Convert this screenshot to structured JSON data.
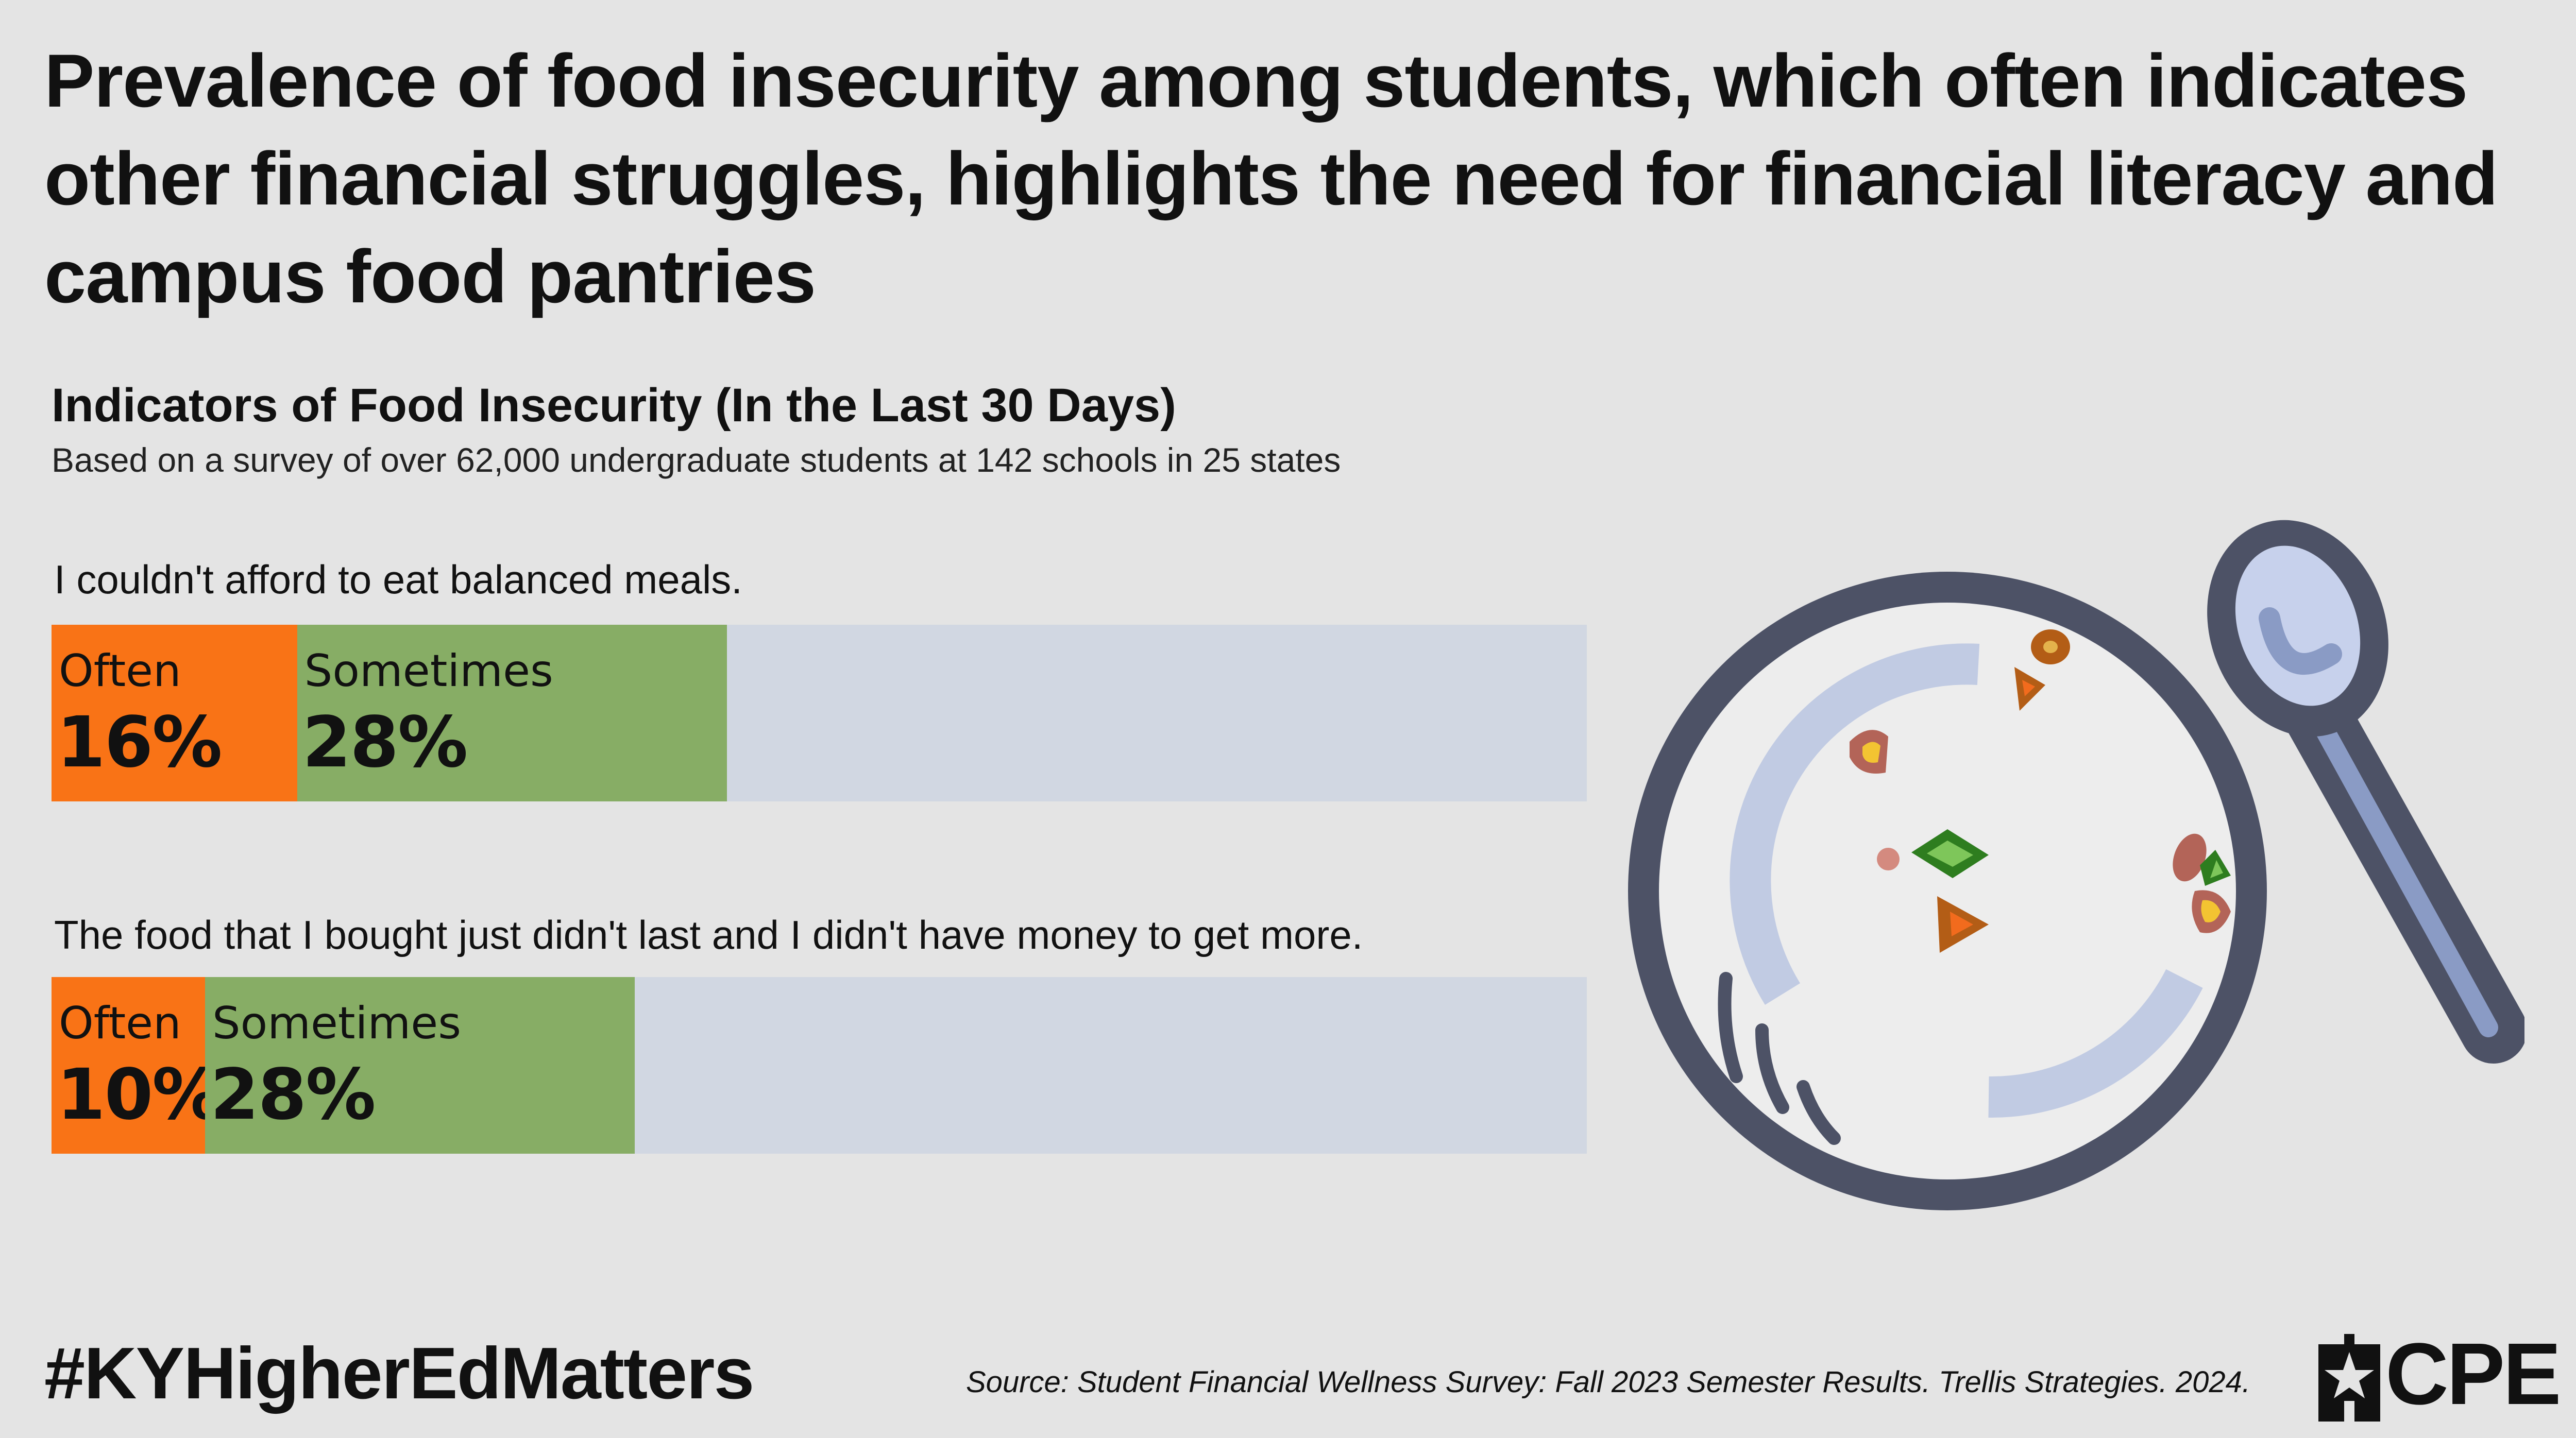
{
  "headline": "Prevalence of food insecurity among students, which often indicates other financial struggles, highlights the need for financial literacy and campus food pantries",
  "chart_data": {
    "type": "bar",
    "orientation": "horizontal-stacked",
    "title": "Indicators of Food Insecurity (In the Last 30 Days)",
    "subtitle": "Based on a survey of over 62,000 undergraduate students at 142 schools in 25 states",
    "xlim": [
      0,
      100
    ],
    "categories": [
      "I couldn't afford to eat balanced meals.",
      "The food that I bought just didn't last and I didn't have money to get more."
    ],
    "series": [
      {
        "name": "Often",
        "color": "#f97316",
        "values": [
          16,
          10
        ],
        "labels": [
          "16%",
          "10%"
        ]
      },
      {
        "name": "Sometimes",
        "color": "#87ad65",
        "values": [
          28,
          28
        ],
        "labels": [
          "28%",
          "28%"
        ]
      }
    ],
    "remainder_color": "#d1d7e2"
  },
  "footer": {
    "hashtag": "#KYHigherEdMatters",
    "source": "Source: Student Financial Wellness Survey: Fall 2023 Semester Results. Trellis Strategies. 2024.",
    "logo_text": "CPE"
  },
  "icons": [
    "plate-with-spoon-icon",
    "cpe-star-icon"
  ]
}
